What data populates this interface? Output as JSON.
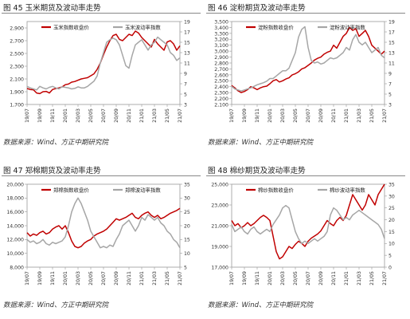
{
  "colors": {
    "futures": "#c00000",
    "volatility": "#a6a6a6",
    "axis": "#999999"
  },
  "chart_data": [
    {
      "type": "line",
      "caption": "图 45  玉米期货及波动率走势",
      "source": "数据来源：Wind、方正中期研究院",
      "legend": [
        "玉米指数收盘价",
        "玉米波动率指数"
      ],
      "legend_placement": "top",
      "x_ticks": [
        "19/07",
        "19/09",
        "19/11",
        "20/01",
        "20/03",
        "20/05",
        "20/07",
        "20/09",
        "20/11",
        "21/01",
        "21/03",
        "21/05",
        "21/07"
      ],
      "y_left": {
        "min": 1700,
        "max": 3000,
        "ticks": [
          "1,700",
          "1,900",
          "2,100",
          "2,300",
          "2,500",
          "2,700",
          "2,900"
        ]
      },
      "y_right": {
        "min": 3,
        "max": 19,
        "ticks": [
          "3",
          "5",
          "7",
          "9",
          "11",
          "13",
          "15",
          "17",
          "19"
        ]
      },
      "grid": false,
      "series": [
        {
          "name": "玉米指数收盘价",
          "axis": "left",
          "color": "#c00000",
          "values": [
            1950,
            1935,
            1930,
            1880,
            1870,
            1900,
            1905,
            1880,
            1935,
            1950,
            1960,
            1975,
            2010,
            2020,
            2050,
            2060,
            2080,
            2100,
            2110,
            2120,
            2150,
            2180,
            2250,
            2350,
            2480,
            2600,
            2700,
            2780,
            2800,
            2720,
            2700,
            2750,
            2800,
            2780,
            2850,
            2820,
            2750,
            2700,
            2650,
            2600,
            2720,
            2650,
            2600,
            2550,
            2680,
            2700,
            2650,
            2550,
            2620
          ]
        },
        {
          "name": "玉米波动率指数",
          "axis": "right",
          "color": "#a6a6a6",
          "values": [
            6.5,
            6.2,
            6.0,
            5.8,
            6.5,
            6.2,
            6.0,
            6.3,
            6.5,
            6.2,
            6.0,
            6.4,
            6.3,
            6.2,
            6.0,
            6.1,
            6.4,
            6.2,
            6.2,
            6.5,
            7.0,
            7.5,
            8.5,
            11.0,
            13.0,
            15.0,
            15.5,
            15.8,
            15.5,
            14.5,
            12.5,
            10.5,
            10.0,
            12.5,
            14.5,
            15.0,
            15.5,
            14.5,
            13.5,
            14.5,
            15.0,
            16.0,
            15.5,
            15.0,
            14.5,
            13.0,
            12.5,
            11.5,
            12.0
          ]
        }
      ]
    },
    {
      "type": "line",
      "caption": "图 46  淀粉期货及波动率走势",
      "source": "数据来源：Wind、方正中期研究院",
      "legend": [
        "淀粉指数收盘价",
        "淀粉波动率指数"
      ],
      "legend_placement": "top",
      "x_ticks": [
        "19/07",
        "19/09",
        "19/11",
        "20/01",
        "20/03",
        "20/05",
        "20/07",
        "20/09",
        "20/11",
        "21/01",
        "21/03",
        "21/05",
        "21/07"
      ],
      "y_left": {
        "min": 2100,
        "max": 3500,
        "ticks": [
          "2,100",
          "2,200",
          "2,300",
          "2,400",
          "2,500",
          "2,600",
          "2,700",
          "2,800",
          "2,900",
          "3,000",
          "3,100",
          "3,200",
          "3,300",
          "3,400",
          "3,500"
        ]
      },
      "y_right": {
        "min": 3,
        "max": 19,
        "ticks": [
          "3",
          "5",
          "7",
          "9",
          "11",
          "13",
          "15",
          "17",
          "19"
        ]
      },
      "grid": false,
      "series": [
        {
          "name": "淀粉指数收盘价",
          "axis": "left",
          "color": "#c00000",
          "values": [
            2420,
            2380,
            2330,
            2300,
            2320,
            2350,
            2400,
            2380,
            2350,
            2380,
            2400,
            2410,
            2450,
            2500,
            2520,
            2480,
            2500,
            2530,
            2550,
            2600,
            2620,
            2650,
            2700,
            2720,
            2760,
            2800,
            2850,
            2880,
            2900,
            2950,
            2980,
            3000,
            3100,
            3050,
            3150,
            3250,
            3300,
            3400,
            3350,
            3380,
            3250,
            3300,
            3350,
            3250,
            3100,
            3050,
            3000,
            2950,
            3000
          ]
        },
        {
          "name": "淀粉波动率指数",
          "axis": "right",
          "color": "#a6a6a6",
          "values": [
            6.5,
            6.0,
            5.8,
            5.6,
            5.8,
            6.0,
            6.2,
            6.5,
            6.8,
            7.0,
            7.2,
            7.5,
            8.0,
            8.0,
            8.5,
            9.0,
            9.5,
            9.5,
            10.0,
            11.5,
            13.0,
            16.0,
            17.5,
            18.0,
            14.0,
            11.5,
            11.0,
            11.2,
            10.8,
            11.0,
            11.5,
            12.0,
            11.8,
            12.0,
            12.5,
            13.0,
            14.0,
            13.5,
            15.5,
            16.5,
            15.0,
            14.5,
            15.0,
            14.0,
            13.0,
            13.5,
            14.0,
            12.5,
            12.0
          ]
        }
      ]
    },
    {
      "type": "line",
      "caption": "图 47  郑棉期货及波动率走势",
      "source": "数据来源：Wind、方正中期研究院",
      "legend": [
        "郑棉指数收盘价",
        "郑棉波动率指数"
      ],
      "legend_placement": "top",
      "x_ticks": [
        "19/07",
        "19/09",
        "19/11",
        "20/01",
        "20/03",
        "20/05",
        "20/07",
        "20/09",
        "20/11",
        "21/01",
        "21/03",
        "21/05",
        "21/07"
      ],
      "y_left": {
        "min": 8000,
        "max": 20000,
        "ticks": [
          "8,000",
          "10,000",
          "12,000",
          "14,000",
          "16,000",
          "18,000",
          "20,000"
        ]
      },
      "y_right": {
        "min": 5,
        "max": 35,
        "ticks": [
          "5",
          "10",
          "15",
          "20",
          "25",
          "30",
          "35"
        ]
      },
      "grid": false,
      "series": [
        {
          "name": "郑棉指数收盘价",
          "axis": "left",
          "color": "#c00000",
          "values": [
            13000,
            12500,
            12800,
            12600,
            13000,
            13200,
            12800,
            13000,
            13500,
            13800,
            14000,
            13500,
            14000,
            13000,
            11800,
            11000,
            10800,
            11000,
            11500,
            11800,
            12000,
            12500,
            12800,
            13000,
            13200,
            13500,
            14000,
            14500,
            15000,
            14800,
            15000,
            15200,
            15500,
            15800,
            15200,
            15000,
            15500,
            15800,
            16000,
            15500,
            15200,
            15500,
            15000,
            15200,
            15500,
            15800,
            16000,
            16200,
            16500
          ]
        },
        {
          "name": "郑棉波动率指数",
          "axis": "right",
          "color": "#a6a6a6",
          "values": [
            15,
            14,
            14.5,
            13.5,
            14,
            15,
            13.5,
            13,
            14,
            13.5,
            14,
            14.5,
            16,
            20,
            25,
            28,
            30,
            28,
            25,
            22,
            18,
            16,
            14,
            12,
            12.5,
            12,
            13,
            12.5,
            15,
            17,
            20,
            21,
            22,
            20,
            18,
            20,
            23,
            22,
            24,
            23,
            22,
            23,
            21,
            20,
            18,
            17,
            15,
            14,
            12
          ]
        }
      ]
    },
    {
      "type": "line",
      "caption": "图 48  棉纱期货及波动率走势",
      "source": "数据来源：Wind、方正中期研究院",
      "legend": [
        "棉纱指数收盘价",
        "棉纱波动率指数"
      ],
      "legend_placement": "top",
      "x_ticks": [
        "19/07",
        "19/09",
        "19/11",
        "20/01",
        "20/03",
        "20/05",
        "20/07",
        "20/09",
        "20/11",
        "21/01",
        "21/03",
        "21/05",
        "21/07"
      ],
      "y_left": {
        "min": 17000,
        "max": 25000,
        "ticks": [
          "17,000",
          "19,000",
          "21,000",
          "23,000",
          "25,000"
        ]
      },
      "y_right": {
        "min": 0,
        "max": 35,
        "ticks": [
          "0",
          "5",
          "10",
          "15",
          "20",
          "25",
          "30",
          "35"
        ]
      },
      "grid": false,
      "series": [
        {
          "name": "棉纱指数收盘价",
          "axis": "left",
          "color": "#c00000",
          "values": [
            21500,
            21000,
            21200,
            20800,
            21000,
            21300,
            21000,
            21200,
            21500,
            21800,
            22000,
            21800,
            21500,
            20000,
            18500,
            17800,
            18000,
            18500,
            19000,
            18800,
            19200,
            19500,
            19300,
            19000,
            19500,
            19800,
            20000,
            20200,
            20500,
            21000,
            21500,
            21200,
            21000,
            21500,
            21800,
            21500,
            22000,
            23000,
            24000,
            23500,
            23000,
            22500,
            23000,
            24000,
            23500,
            23000,
            24000,
            24500,
            25000
          ]
        },
        {
          "name": "棉纱波动率指数",
          "axis": "right",
          "color": "#a6a6a6",
          "values": [
            18,
            15,
            16,
            17,
            15,
            14,
            16,
            17,
            15,
            14,
            15,
            16,
            15,
            18,
            20,
            22,
            25,
            26,
            25,
            20,
            15,
            12,
            10,
            11,
            10,
            11,
            12,
            11,
            12,
            13,
            15,
            22,
            25,
            24,
            22,
            20,
            21,
            20,
            22,
            23,
            24,
            23,
            22,
            21,
            20,
            19,
            18,
            16,
            12
          ]
        }
      ]
    }
  ]
}
